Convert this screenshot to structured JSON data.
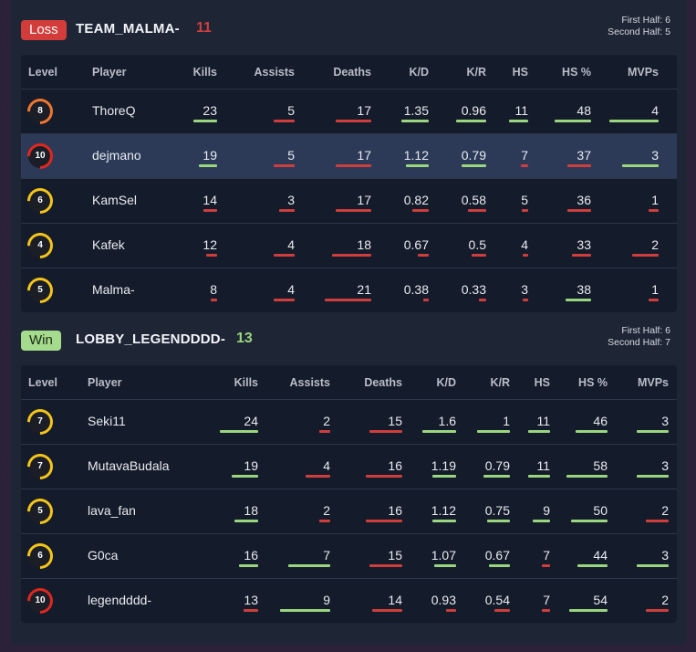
{
  "colors": {
    "good": "#9ad67f",
    "bad": "#cf3e3c",
    "level_orange": "#f0762f",
    "level_yellow": "#f5c518",
    "level_red": "#e0271f"
  },
  "teams": [
    {
      "result": "Loss",
      "name": "TEAM_MALMA-",
      "score": "11",
      "first_half": "First Half: 6",
      "second_half": "Second Half: 5",
      "columns": [
        "Level",
        "Player",
        "Kills",
        "Assists",
        "Deaths",
        "K/D",
        "K/R",
        "HS",
        "HS %",
        "MVPs"
      ],
      "rows": [
        {
          "level": "8",
          "level_color": "orange",
          "player": "ThoreQ",
          "kills": "23",
          "assists": "5",
          "deaths": "17",
          "kd": "1.35",
          "kr": "0.96",
          "hs": "11",
          "hsp": "48",
          "mvps": "4",
          "highlight": false
        },
        {
          "level": "10",
          "level_color": "red",
          "player": "dejmano",
          "kills": "19",
          "assists": "5",
          "deaths": "17",
          "kd": "1.12",
          "kr": "0.79",
          "hs": "7",
          "hsp": "37",
          "mvps": "3",
          "highlight": true
        },
        {
          "level": "6",
          "level_color": "yellow",
          "player": "KamSel",
          "kills": "14",
          "assists": "3",
          "deaths": "17",
          "kd": "0.82",
          "kr": "0.58",
          "hs": "5",
          "hsp": "36",
          "mvps": "1",
          "highlight": false
        },
        {
          "level": "4",
          "level_color": "yellow",
          "player": "Kafek",
          "kills": "12",
          "assists": "4",
          "deaths": "18",
          "kd": "0.67",
          "kr": "0.5",
          "hs": "4",
          "hsp": "33",
          "mvps": "2",
          "highlight": false
        },
        {
          "level": "5",
          "level_color": "yellow",
          "player": "Malma-",
          "kills": "8",
          "assists": "4",
          "deaths": "21",
          "kd": "0.38",
          "kr": "0.33",
          "hs": "3",
          "hsp": "38",
          "mvps": "1",
          "highlight": false
        }
      ]
    },
    {
      "result": "Win",
      "name": "LOBBY_LEGENDDDD-",
      "score": "13",
      "first_half": "First Half: 6",
      "second_half": "Second Half: 7",
      "columns": [
        "Level",
        "Player",
        "Kills",
        "Assists",
        "Deaths",
        "K/D",
        "K/R",
        "HS",
        "HS %",
        "MVPs"
      ],
      "rows": [
        {
          "level": "7",
          "level_color": "yellow",
          "player": "Seki11",
          "kills": "24",
          "assists": "2",
          "deaths": "15",
          "kd": "1.6",
          "kr": "1",
          "hs": "11",
          "hsp": "46",
          "mvps": "3",
          "highlight": false
        },
        {
          "level": "7",
          "level_color": "yellow",
          "player": "MutavaBudala",
          "kills": "19",
          "assists": "4",
          "deaths": "16",
          "kd": "1.19",
          "kr": "0.79",
          "hs": "11",
          "hsp": "58",
          "mvps": "3",
          "highlight": false
        },
        {
          "level": "5",
          "level_color": "yellow",
          "player": "lava_fan",
          "kills": "18",
          "assists": "2",
          "deaths": "16",
          "kd": "1.12",
          "kr": "0.75",
          "hs": "9",
          "hsp": "50",
          "mvps": "2",
          "highlight": false
        },
        {
          "level": "6",
          "level_color": "yellow",
          "player": "G0ca",
          "kills": "16",
          "assists": "7",
          "deaths": "15",
          "kd": "1.07",
          "kr": "0.67",
          "hs": "7",
          "hsp": "44",
          "mvps": "3",
          "highlight": false
        },
        {
          "level": "10",
          "level_color": "red",
          "player": "legendddd-",
          "kills": "13",
          "assists": "9",
          "deaths": "14",
          "kd": "0.93",
          "kr": "0.54",
          "hs": "7",
          "hsp": "54",
          "mvps": "2",
          "highlight": false
        }
      ]
    }
  ],
  "stat_bars": [
    [
      {
        "kills": [
          0.75,
          "g"
        ],
        "assists": [
          0.55,
          "r"
        ],
        "deaths": [
          0.73,
          "r"
        ],
        "kd": [
          0.85,
          "g"
        ],
        "kr": [
          0.85,
          "g"
        ],
        "hs": [
          0.9,
          "g"
        ],
        "hsp": [
          0.85,
          "g"
        ],
        "mvps": [
          0.95,
          "g"
        ]
      },
      {
        "kills": [
          0.6,
          "g"
        ],
        "assists": [
          0.55,
          "r"
        ],
        "deaths": [
          0.73,
          "r"
        ],
        "kd": [
          0.7,
          "g"
        ],
        "kr": [
          0.7,
          "g"
        ],
        "hs": [
          0.35,
          "r"
        ],
        "hsp": [
          0.55,
          "r"
        ],
        "mvps": [
          0.7,
          "g"
        ]
      },
      {
        "kills": [
          0.45,
          "r"
        ],
        "assists": [
          0.4,
          "r"
        ],
        "deaths": [
          0.73,
          "r"
        ],
        "kd": [
          0.5,
          "r"
        ],
        "kr": [
          0.5,
          "r"
        ],
        "hs": [
          0.3,
          "r"
        ],
        "hsp": [
          0.55,
          "r"
        ],
        "mvps": [
          0.2,
          "r"
        ]
      },
      {
        "kills": [
          0.35,
          "r"
        ],
        "assists": [
          0.55,
          "r"
        ],
        "deaths": [
          0.8,
          "r"
        ],
        "kd": [
          0.35,
          "r"
        ],
        "kr": [
          0.4,
          "r"
        ],
        "hs": [
          0.2,
          "r"
        ],
        "hsp": [
          0.45,
          "r"
        ],
        "mvps": [
          0.5,
          "r"
        ]
      },
      {
        "kills": [
          0.2,
          "r"
        ],
        "assists": [
          0.55,
          "r"
        ],
        "deaths": [
          0.95,
          "r"
        ],
        "kd": [
          0.15,
          "r"
        ],
        "kr": [
          0.2,
          "r"
        ],
        "hs": [
          0.15,
          "r"
        ],
        "hsp": [
          0.6,
          "g"
        ],
        "mvps": [
          0.2,
          "r"
        ]
      }
    ],
    [
      {
        "kills": [
          0.8,
          "g"
        ],
        "assists": [
          0.2,
          "r"
        ],
        "deaths": [
          0.6,
          "r"
        ],
        "kd": [
          0.85,
          "g"
        ],
        "kr": [
          0.85,
          "g"
        ],
        "hs": [
          0.9,
          "g"
        ],
        "hsp": [
          0.75,
          "g"
        ],
        "mvps": [
          0.7,
          "g"
        ]
      },
      {
        "kills": [
          0.55,
          "g"
        ],
        "assists": [
          0.45,
          "r"
        ],
        "deaths": [
          0.67,
          "r"
        ],
        "kd": [
          0.6,
          "g"
        ],
        "kr": [
          0.7,
          "g"
        ],
        "hs": [
          0.9,
          "g"
        ],
        "hsp": [
          0.95,
          "g"
        ],
        "mvps": [
          0.7,
          "g"
        ]
      },
      {
        "kills": [
          0.5,
          "g"
        ],
        "assists": [
          0.2,
          "r"
        ],
        "deaths": [
          0.67,
          "r"
        ],
        "kd": [
          0.6,
          "g"
        ],
        "kr": [
          0.6,
          "g"
        ],
        "hs": [
          0.7,
          "g"
        ],
        "hsp": [
          0.85,
          "g"
        ],
        "mvps": [
          0.5,
          "r"
        ]
      },
      {
        "kills": [
          0.4,
          "g"
        ],
        "assists": [
          0.75,
          "g"
        ],
        "deaths": [
          0.6,
          "r"
        ],
        "kd": [
          0.55,
          "g"
        ],
        "kr": [
          0.55,
          "g"
        ],
        "hs": [
          0.35,
          "r"
        ],
        "hsp": [
          0.7,
          "g"
        ],
        "mvps": [
          0.7,
          "g"
        ]
      },
      {
        "kills": [
          0.3,
          "r"
        ],
        "assists": [
          0.9,
          "g"
        ],
        "deaths": [
          0.55,
          "r"
        ],
        "kd": [
          0.25,
          "r"
        ],
        "kr": [
          0.4,
          "r"
        ],
        "hs": [
          0.35,
          "r"
        ],
        "hsp": [
          0.9,
          "g"
        ],
        "mvps": [
          0.5,
          "r"
        ]
      }
    ]
  ]
}
